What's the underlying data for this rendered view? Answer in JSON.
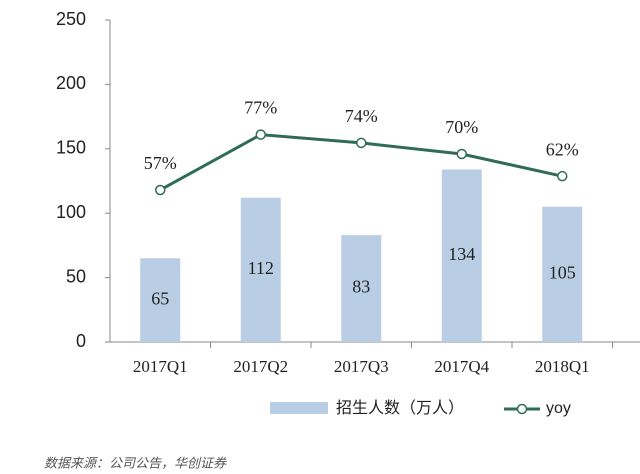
{
  "chart_data": {
    "type": "bar-line",
    "categories": [
      "2017Q1",
      "2017Q2",
      "2017Q3",
      "2017Q4",
      "2018Q1"
    ],
    "series": [
      {
        "name": "招生人数（万人）",
        "type": "bar",
        "color": "#b9cde5",
        "values": [
          65,
          112,
          83,
          134,
          105
        ]
      },
      {
        "name": "yoy",
        "type": "line",
        "axis": "y2",
        "color": "#2f6b58",
        "values": [
          57,
          77,
          74,
          70,
          62
        ],
        "value_labels": [
          "57%",
          "77%",
          "74%",
          "70%",
          "62%"
        ]
      }
    ],
    "ylim": [
      0,
      250
    ],
    "yticks": [
      0,
      50,
      100,
      150,
      200,
      250
    ],
    "y2lim": [
      2.1,
      118.4
    ],
    "source": "数据来源：公司公告，华创证券"
  }
}
